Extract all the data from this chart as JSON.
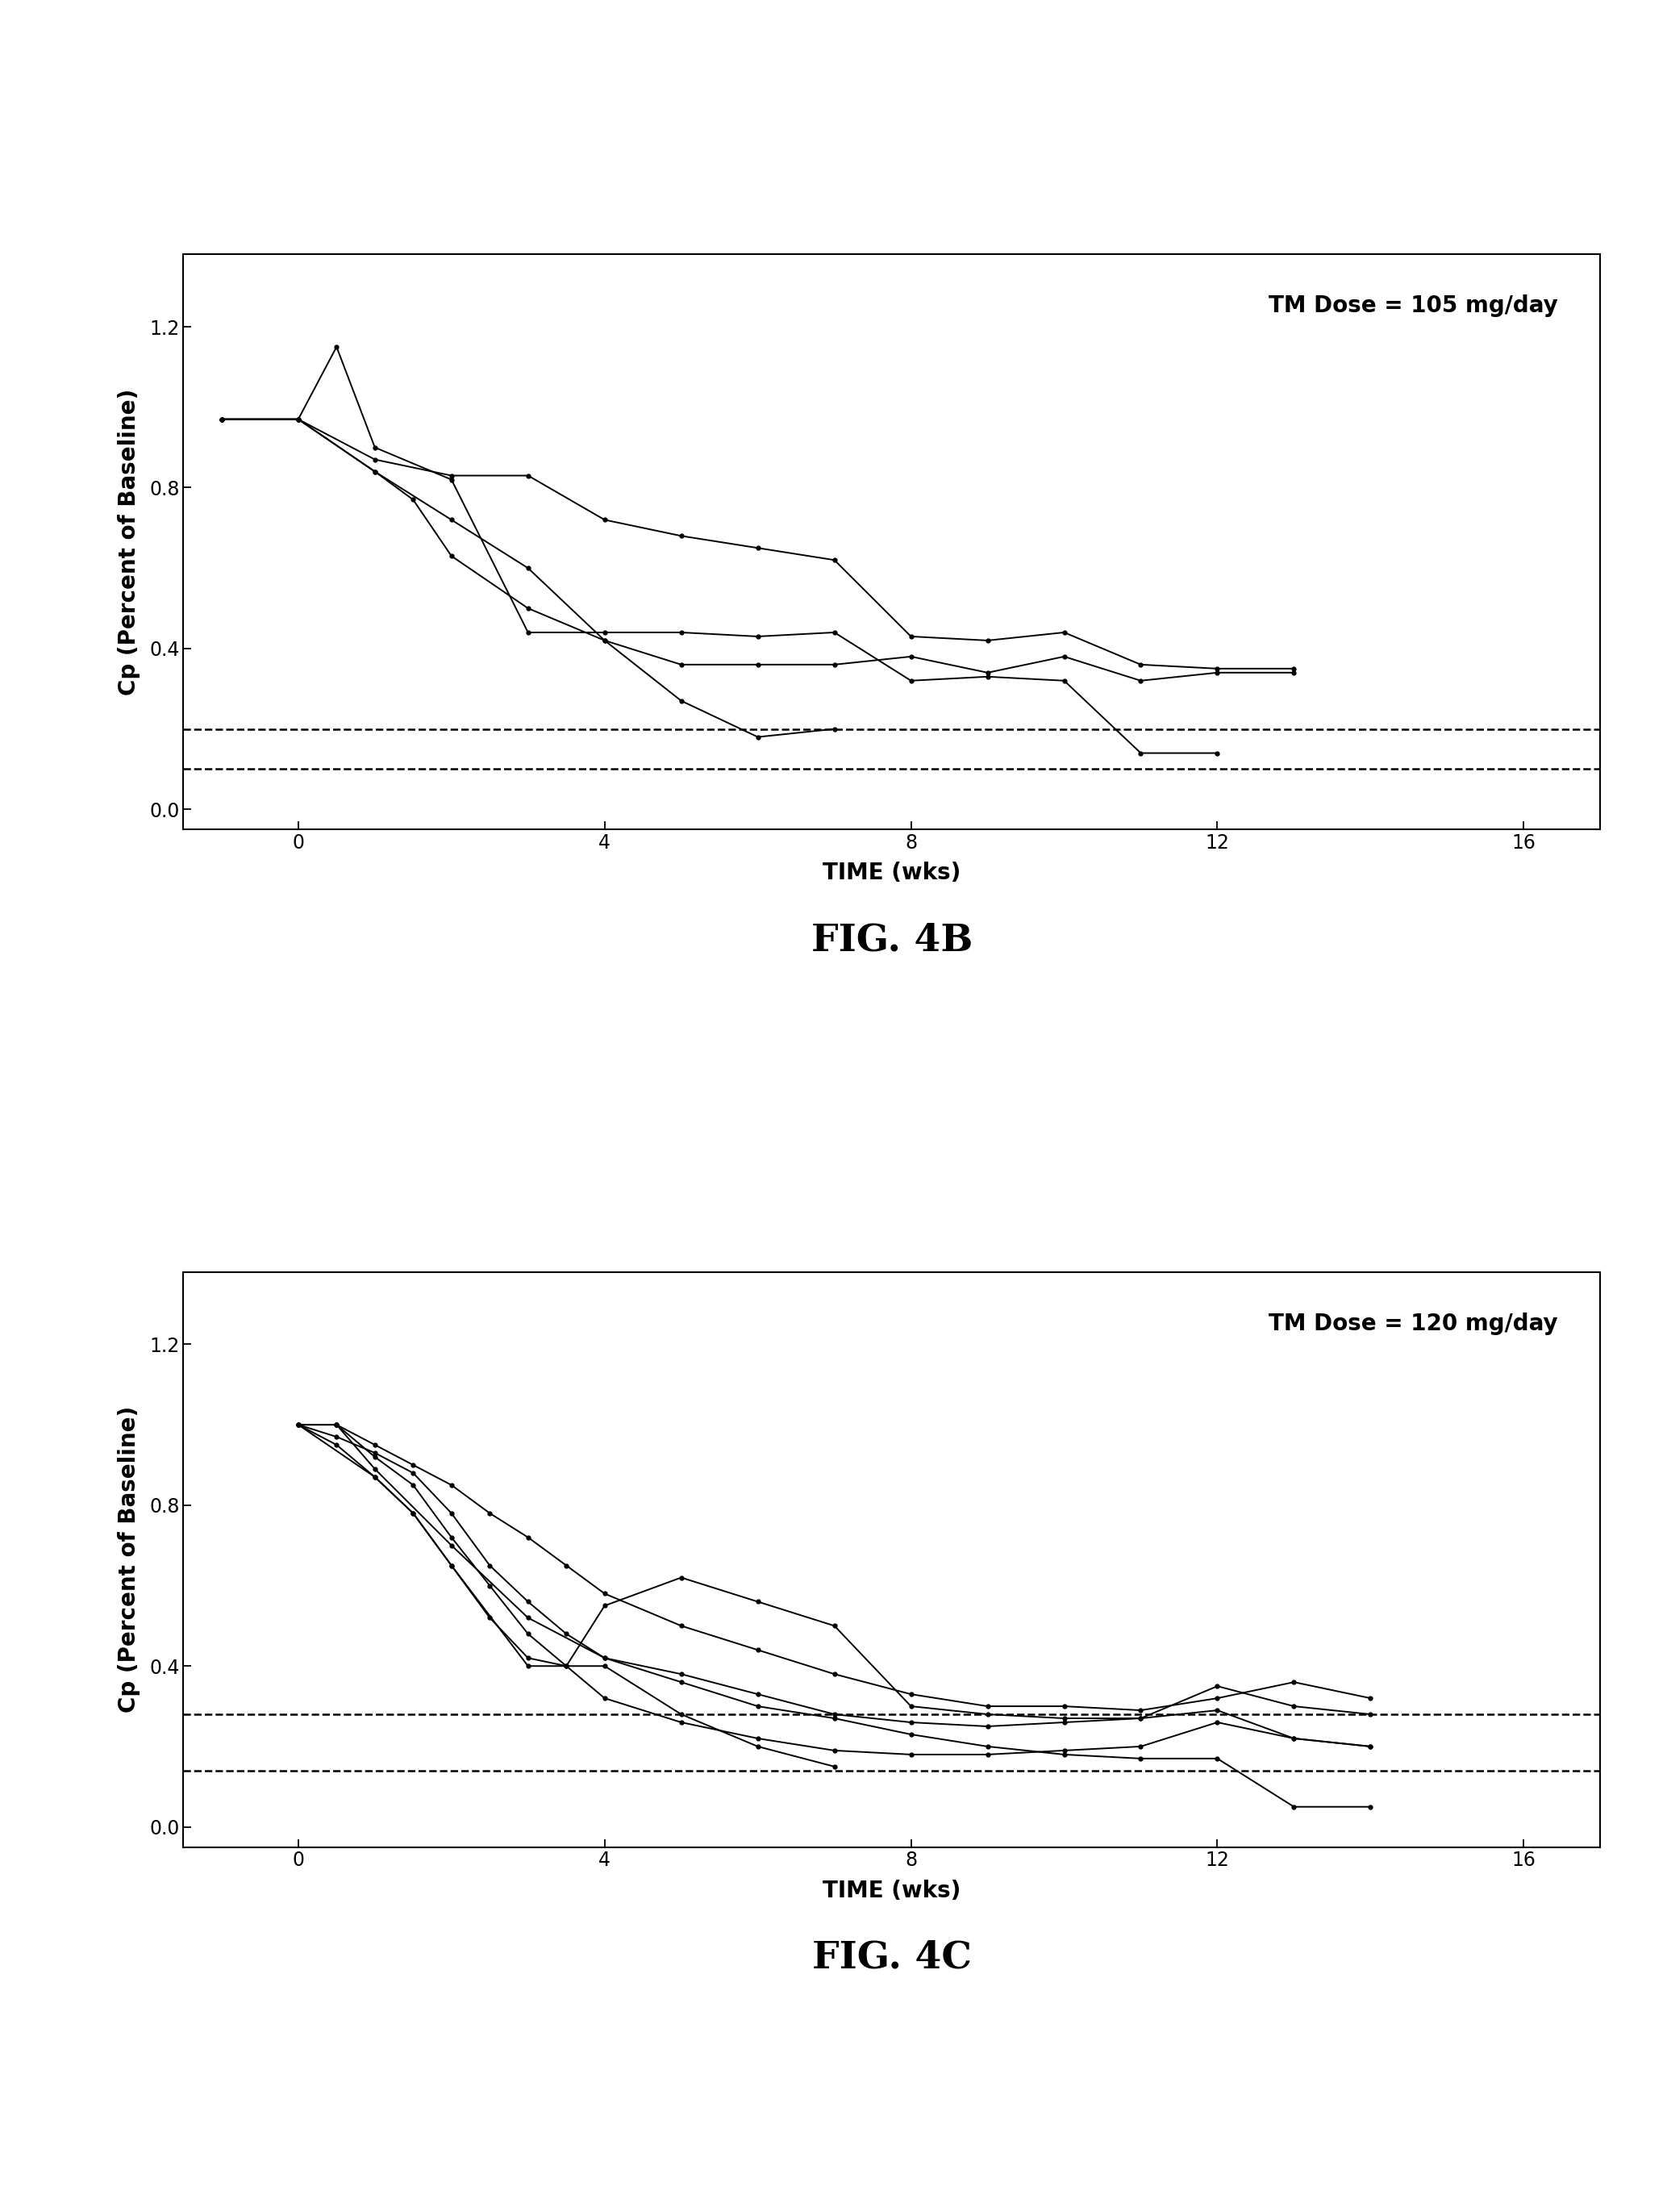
{
  "fig4b": {
    "title": "TM Dose = 105 mg/day",
    "xlabel": "TIME (wks)",
    "ylabel": "Cp (Percent of Baseline)",
    "fig_label": "FIG. 4B",
    "xlim": [
      -1.5,
      17
    ],
    "ylim": [
      -0.05,
      1.38
    ],
    "yticks": [
      0.0,
      0.4,
      0.8,
      1.2
    ],
    "xticks": [
      0,
      4,
      8,
      12,
      16
    ],
    "dashed_lines": [
      0.2,
      0.1
    ],
    "series": [
      [
        -1,
        0.97,
        0,
        0.97,
        1,
        0.87,
        2,
        0.83,
        3,
        0.83,
        4,
        0.72,
        5,
        0.68,
        6,
        0.65,
        7,
        0.62,
        8,
        0.43,
        9,
        0.42,
        10,
        0.44,
        11,
        0.36,
        12,
        0.35,
        13,
        0.35
      ],
      [
        -1,
        0.97,
        0,
        0.97,
        0.5,
        1.15,
        1,
        0.9,
        2,
        0.82,
        3,
        0.44,
        4,
        0.44,
        5,
        0.44,
        6,
        0.43,
        7,
        0.44,
        8,
        0.32,
        9,
        0.33,
        10,
        0.32,
        11,
        0.14,
        12,
        0.14
      ],
      [
        -1,
        0.97,
        0,
        0.97,
        1,
        0.84,
        2,
        0.72,
        3,
        0.6,
        4,
        0.42,
        5,
        0.36,
        6,
        0.36,
        7,
        0.36,
        8,
        0.38,
        9,
        0.34,
        10,
        0.38,
        11,
        0.32,
        12,
        0.34,
        13,
        0.34
      ],
      [
        -1,
        0.97,
        0,
        0.97,
        1,
        0.84,
        1.5,
        0.77,
        2,
        0.63,
        3,
        0.5,
        4,
        0.42,
        5,
        0.27,
        6,
        0.18,
        7,
        0.2
      ]
    ]
  },
  "fig4c": {
    "title": "TM Dose = 120 mg/day",
    "xlabel": "TIME (wks)",
    "ylabel": "Cp (Percent of Baseline)",
    "fig_label": "FIG. 4C",
    "xlim": [
      -1.5,
      17
    ],
    "ylim": [
      -0.05,
      1.38
    ],
    "yticks": [
      0.0,
      0.4,
      0.8,
      1.2
    ],
    "xticks": [
      0,
      4,
      8,
      12,
      16
    ],
    "dashed_lines": [
      0.28,
      0.14
    ],
    "series": [
      [
        0,
        1.0,
        0.5,
        1.0,
        1,
        0.95,
        1.5,
        0.9,
        2,
        0.85,
        2.5,
        0.78,
        3,
        0.72,
        3.5,
        0.65,
        4,
        0.58,
        5,
        0.5,
        6,
        0.44,
        7,
        0.38,
        8,
        0.33,
        9,
        0.3,
        10,
        0.3,
        11,
        0.29,
        12,
        0.32,
        13,
        0.36,
        14,
        0.32
      ],
      [
        0,
        1.0,
        0.5,
        0.97,
        1,
        0.93,
        1.5,
        0.88,
        2,
        0.78,
        2.5,
        0.65,
        3,
        0.56,
        3.5,
        0.48,
        4,
        0.42,
        5,
        0.38,
        6,
        0.33,
        7,
        0.28,
        8,
        0.26,
        9,
        0.25,
        10,
        0.26,
        11,
        0.27,
        12,
        0.35,
        13,
        0.3,
        14,
        0.28
      ],
      [
        0,
        1.0,
        0.5,
        1.0,
        1,
        0.92,
        1.5,
        0.85,
        2,
        0.72,
        2.5,
        0.6,
        3,
        0.48,
        3.5,
        0.4,
        4,
        0.32,
        5,
        0.26,
        6,
        0.22,
        7,
        0.19,
        8,
        0.18,
        9,
        0.18,
        10,
        0.19,
        11,
        0.2,
        12,
        0.26,
        13,
        0.22,
        14,
        0.2
      ],
      [
        0,
        1.0,
        0.5,
        0.95,
        1,
        0.87,
        1.5,
        0.78,
        2,
        0.65,
        2.5,
        0.52,
        3,
        0.42,
        3.5,
        0.4,
        4,
        0.55,
        5,
        0.62,
        6,
        0.56,
        7,
        0.5,
        8,
        0.3,
        9,
        0.28,
        10,
        0.27,
        11,
        0.27,
        12,
        0.29,
        13,
        0.22,
        14,
        0.2
      ],
      [
        0,
        1.0,
        1,
        0.87,
        1.5,
        0.78,
        2,
        0.65,
        3,
        0.4,
        4,
        0.4,
        5,
        0.28,
        6,
        0.2,
        7,
        0.15
      ],
      [
        0,
        1.0,
        0.5,
        1.0,
        1,
        0.89,
        2,
        0.7,
        3,
        0.52,
        4,
        0.42,
        5,
        0.36,
        6,
        0.3,
        7,
        0.27,
        8,
        0.23,
        9,
        0.2,
        10,
        0.18,
        11,
        0.17,
        12,
        0.17,
        13,
        0.05,
        14,
        0.05
      ]
    ]
  },
  "line_color": "#000000",
  "marker": "o",
  "marker_size": 3.5,
  "line_width": 1.4,
  "background_color": "#ffffff",
  "font_size_label": 20,
  "font_size_title": 20,
  "font_size_fig_label": 34,
  "font_size_tick": 17
}
